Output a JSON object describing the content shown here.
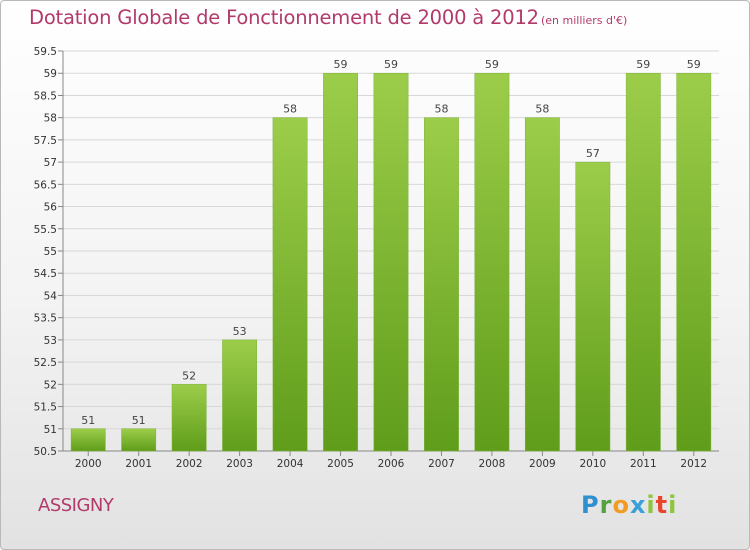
{
  "title": "Dotation Globale de Fonctionnement de 2000 à 2012",
  "subtitle": "(en milliers d'€)",
  "commune": "ASSIGNY",
  "brand": "Proxiti",
  "colors": {
    "title": "#b23a6b",
    "bar_light": "#9ccd4a",
    "bar_dark": "#5f9d1a",
    "grid": "#d8d8d8"
  },
  "chart_data": {
    "type": "bar",
    "title": "Dotation Globale de Fonctionnement de 2000 à 2012",
    "subtitle": "(en milliers d'€)",
    "categories": [
      "2000",
      "2001",
      "2002",
      "2003",
      "2004",
      "2005",
      "2006",
      "2007",
      "2008",
      "2009",
      "2010",
      "2011",
      "2012"
    ],
    "values": [
      51,
      51,
      52,
      53,
      58,
      59,
      59,
      58,
      59,
      58,
      57,
      59,
      59
    ],
    "value_labels": [
      "51",
      "51",
      "52",
      "53",
      "58",
      "59",
      "59",
      "58",
      "59",
      "58",
      "57",
      "59",
      "59"
    ],
    "ylim": [
      50.5,
      59.5
    ],
    "yticks": [
      50.5,
      51,
      51.5,
      52,
      52.5,
      53,
      53.5,
      54,
      54.5,
      55,
      55.5,
      56,
      56.5,
      57,
      57.5,
      58,
      58.5,
      59,
      59.5
    ],
    "ytick_labels": [
      "50.5",
      "51",
      "51.5",
      "52",
      "52.5",
      "53",
      "53.5",
      "54",
      "54.5",
      "55",
      "55.5",
      "56",
      "56.5",
      "57",
      "57.5",
      "58",
      "58.5",
      "59",
      "59.5"
    ],
    "grid": true,
    "legend": "none",
    "xlabel": "",
    "ylabel": ""
  }
}
